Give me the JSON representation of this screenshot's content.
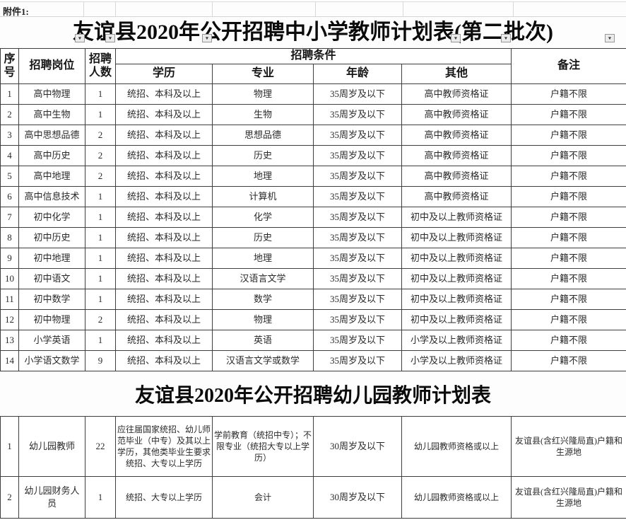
{
  "page": {
    "attachment_label": "附件1:"
  },
  "icons": {
    "filter_arrow": "▼"
  },
  "table1": {
    "title": "友谊县2020年公开招聘中小学教师计划表(第二批次)",
    "header": {
      "seq": "序号",
      "position": "招聘岗位",
      "count": "招聘人数",
      "conditions": "招聘条件",
      "edu": "学历",
      "major": "专业",
      "age": "年龄",
      "other": "其他",
      "remark": "备注"
    },
    "rows": [
      {
        "seq": "1",
        "position": "高中物理",
        "count": "1",
        "edu": "统招、本科及以上",
        "major": "物理",
        "age": "35周岁及以下",
        "other": "高中教师资格证",
        "remark": "户籍不限"
      },
      {
        "seq": "2",
        "position": "高中生物",
        "count": "1",
        "edu": "统招、本科及以上",
        "major": "生物",
        "age": "35周岁及以下",
        "other": "高中教师资格证",
        "remark": "户籍不限"
      },
      {
        "seq": "3",
        "position": "高中思想品德",
        "count": "2",
        "edu": "统招、本科及以上",
        "major": "思想品德",
        "age": "35周岁及以下",
        "other": "高中教师资格证",
        "remark": "户籍不限"
      },
      {
        "seq": "4",
        "position": "高中历史",
        "count": "2",
        "edu": "统招、本科及以上",
        "major": "历史",
        "age": "35周岁及以下",
        "other": "高中教师资格证",
        "remark": "户籍不限"
      },
      {
        "seq": "5",
        "position": "高中地理",
        "count": "2",
        "edu": "统招、本科及以上",
        "major": "地理",
        "age": "35周岁及以下",
        "other": "高中教师资格证",
        "remark": "户籍不限"
      },
      {
        "seq": "6",
        "position": "高中信息技术",
        "count": "1",
        "edu": "统招、本科及以上",
        "major": "计算机",
        "age": "35周岁及以下",
        "other": "高中教师资格证",
        "remark": "户籍不限"
      },
      {
        "seq": "7",
        "position": "初中化学",
        "count": "1",
        "edu": "统招、本科及以上",
        "major": "化学",
        "age": "35周岁及以下",
        "other": "初中及以上教师资格证",
        "remark": "户籍不限"
      },
      {
        "seq": "8",
        "position": "初中历史",
        "count": "1",
        "edu": "统招、本科及以上",
        "major": "历史",
        "age": "35周岁及以下",
        "other": "初中及以上教师资格证",
        "remark": "户籍不限"
      },
      {
        "seq": "9",
        "position": "初中地理",
        "count": "1",
        "edu": "统招、本科及以上",
        "major": "地理",
        "age": "35周岁及以下",
        "other": "初中及以上教师资格证",
        "remark": "户籍不限"
      },
      {
        "seq": "10",
        "position": "初中语文",
        "count": "1",
        "edu": "统招、本科及以上",
        "major": "汉语言文学",
        "age": "35周岁及以下",
        "other": "初中及以上教师资格证",
        "remark": "户籍不限"
      },
      {
        "seq": "11",
        "position": "初中数学",
        "count": "1",
        "edu": "统招、本科及以上",
        "major": "数学",
        "age": "35周岁及以下",
        "other": "初中及以上教师资格证",
        "remark": "户籍不限"
      },
      {
        "seq": "12",
        "position": "初中物理",
        "count": "2",
        "edu": "统招、本科及以上",
        "major": "物理",
        "age": "35周岁及以下",
        "other": "初中及以上教师资格证",
        "remark": "户籍不限"
      },
      {
        "seq": "13",
        "position": "小学英语",
        "count": "1",
        "edu": "统招、本科及以上",
        "major": "英语",
        "age": "35周岁及以下",
        "other": "小学及以上教师资格证",
        "remark": "户籍不限"
      },
      {
        "seq": "14",
        "position": "小学语文数学",
        "count": "9",
        "edu": "统招、本科及以上",
        "major": "汉语言文学或数学",
        "age": "35周岁及以下",
        "other": "小学及以上教师资格证",
        "remark": "户籍不限"
      }
    ]
  },
  "table2": {
    "title": "友谊县2020年公开招聘幼儿园教师计划表",
    "rows": [
      {
        "seq": "1",
        "position": "幼儿园教师",
        "count": "22",
        "edu": "应往届国家统招、幼儿师范毕业（中专）及其以上学历，其他类毕业生要求统招、大专以上学历",
        "major": "学前教育（统招中专）；不限专业（统招大专以上学历）",
        "age": "30周岁及以下",
        "other": "幼儿园教师资格或以上",
        "remark": "友谊县(含红兴隆局直)户籍和生源地"
      },
      {
        "seq": "2",
        "position": "幼儿园财务人员",
        "count": "1",
        "edu": "统招、大专以上学历",
        "major": "会计",
        "age": "30周岁及以下",
        "other": "幼儿园教师资格或以上",
        "remark": "友谊县(含红兴隆局直)户籍和生源地"
      }
    ]
  }
}
